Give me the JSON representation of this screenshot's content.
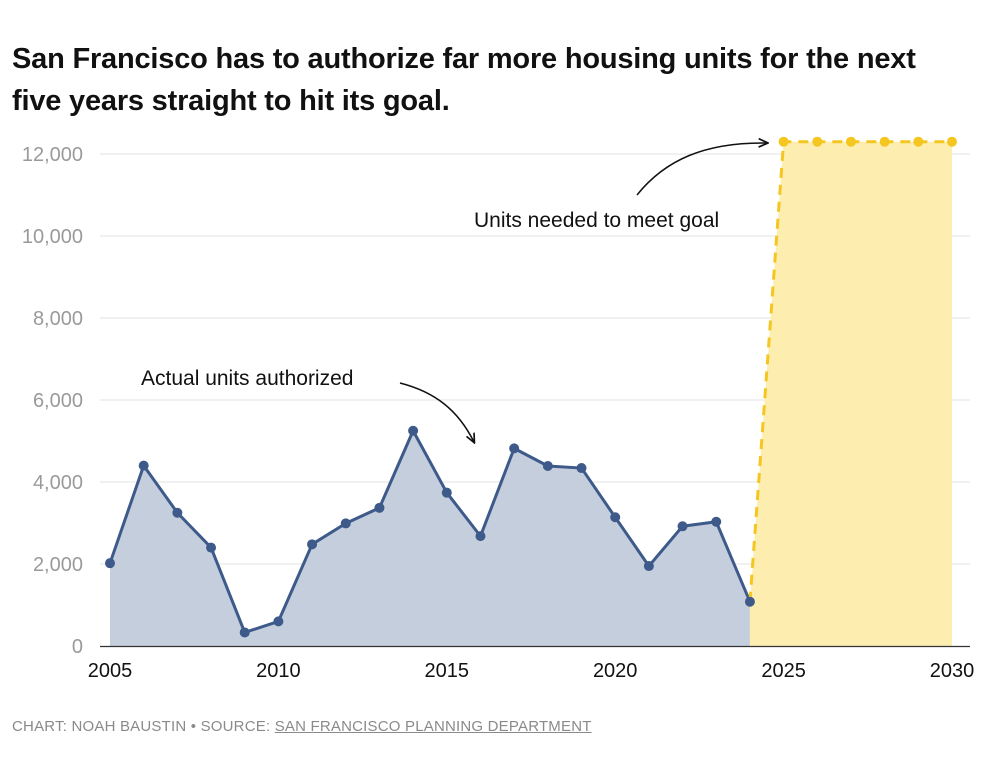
{
  "chart_data": {
    "type": "area",
    "title": "San Francisco has to authorize far more housing units for the next five years straight to hit its goal.",
    "xlabel": "",
    "ylabel": "",
    "xlim": [
      2005,
      2030
    ],
    "ylim": [
      0,
      12000
    ],
    "x_ticks": [
      "2005",
      "2010",
      "2015",
      "2020",
      "2025",
      "2030"
    ],
    "y_ticks": [
      "0",
      "2,000",
      "4,000",
      "6,000",
      "8,000",
      "10,000",
      "12,000"
    ],
    "grid": true,
    "series": [
      {
        "name": "Actual units authorized",
        "color": "#3d5a8a",
        "fill": "#c5cedc",
        "x": [
          2005,
          2006,
          2007,
          2008,
          2009,
          2010,
          2011,
          2012,
          2013,
          2014,
          2015,
          2016,
          2017,
          2018,
          2019,
          2020,
          2021,
          2022,
          2023,
          2024
        ],
        "values": [
          2020,
          4400,
          3250,
          2400,
          330,
          600,
          2480,
          2990,
          3370,
          5250,
          3740,
          2680,
          4820,
          4390,
          4340,
          3140,
          1950,
          2920,
          3030,
          1080
        ]
      },
      {
        "name": "Units needed to meet goal",
        "color": "#f4c61f",
        "fill": "#fdeeb0",
        "x": [
          2025,
          2026,
          2027,
          2028,
          2029,
          2030
        ],
        "values": [
          12300,
          12300,
          12300,
          12300,
          12300,
          12300
        ]
      }
    ],
    "annotations": [
      {
        "text": "Actual units authorized",
        "target": "series-0"
      },
      {
        "text": "Units needed to meet goal",
        "target": "series-1"
      }
    ]
  },
  "footer": {
    "credit": "CHART: NOAH BAUSTIN • SOURCE: ",
    "source_link": "SAN FRANCISCO PLANNING DEPARTMENT"
  }
}
